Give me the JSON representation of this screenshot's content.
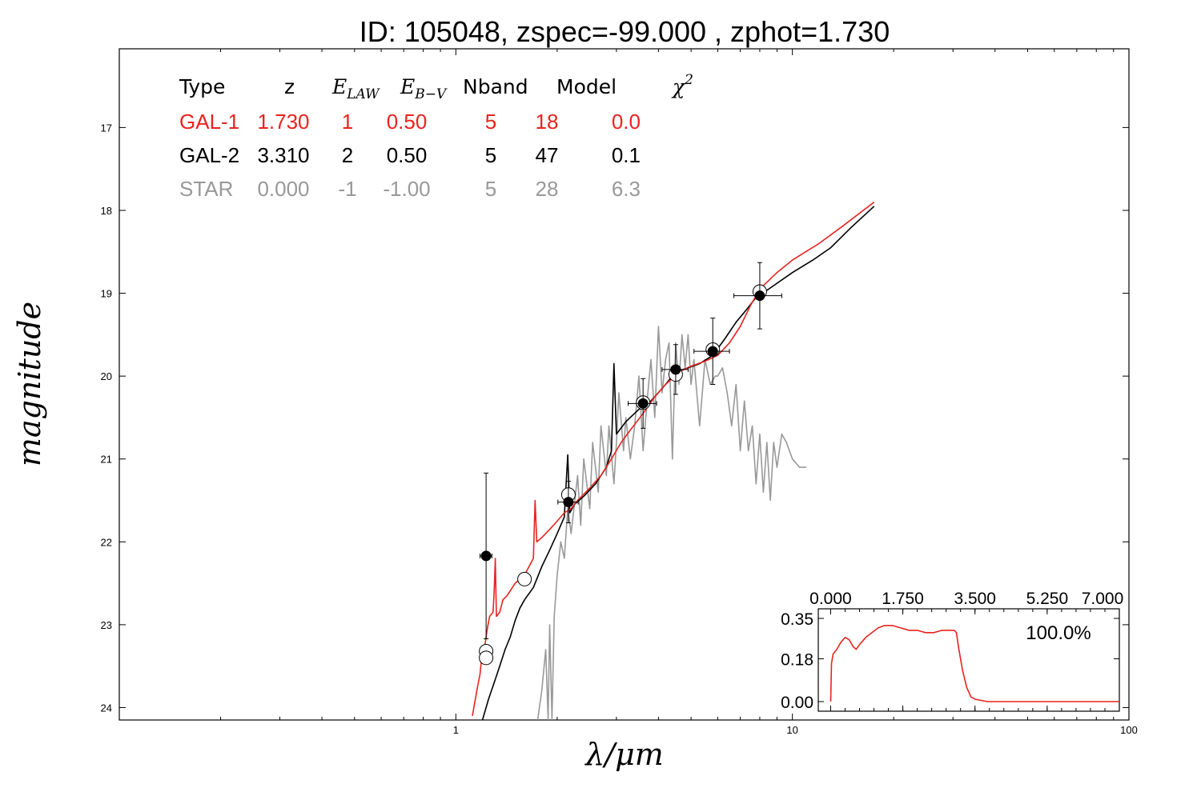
{
  "chart_data": [
    {
      "type": "line",
      "title": "ID:  105048, zspec=-99.000 , zphot=1.730",
      "xlabel": "λ/μm",
      "ylabel": "magnitude",
      "xscale": "log",
      "xlim": [
        0.1,
        100
      ],
      "ylim": [
        24.15,
        16.05
      ],
      "y_inverted": true,
      "x_ticks": [
        1,
        10,
        100
      ],
      "x_tick_labels": [
        "1",
        "10",
        "100"
      ],
      "y_ticks": [
        17,
        18,
        19,
        20,
        21,
        22,
        23,
        24
      ],
      "y_tick_labels": [
        "17",
        "18",
        "19",
        "20",
        "21",
        "22",
        "23",
        "24"
      ],
      "legend_table": {
        "headers": {
          "type": "Type",
          "z": "z",
          "elaw": "E",
          "elaw_sub": "LAW",
          "ebv": "E",
          "ebv_sub": "B−V",
          "nband": "Nband",
          "model": "Model",
          "chi2": "χ",
          "chi2_sup": "2"
        },
        "rows": [
          {
            "type": "GAL-1",
            "z": "1.730",
            "elaw": "1",
            "ebv": "0.50",
            "nband": "5",
            "model": "18",
            "chi2": "0.0",
            "color": "#e8231f"
          },
          {
            "type": "GAL-2",
            "z": "3.310",
            "elaw": "2",
            "ebv": "0.50",
            "nband": "5",
            "model": "47",
            "chi2": "0.1",
            "color": "#000000"
          },
          {
            "type": "STAR",
            "z": "0.000",
            "elaw": "-1",
            "ebv": "-1.00",
            "nband": "5",
            "model": "28",
            "chi2": "6.3",
            "color": "#999999"
          }
        ]
      },
      "series": [
        {
          "color": "#e8231f",
          "points": [
            [
              1.12,
              24.1
            ],
            [
              1.16,
              23.75
            ],
            [
              1.18,
              23.6
            ],
            [
              1.2,
              23.3
            ],
            [
              1.22,
              23.25
            ],
            [
              1.24,
              23.05
            ],
            [
              1.26,
              22.9
            ],
            [
              1.29,
              22.85
            ],
            [
              1.3,
              22.6
            ],
            [
              1.31,
              22.2
            ],
            [
              1.32,
              22.9
            ],
            [
              1.35,
              22.85
            ],
            [
              1.38,
              22.7
            ],
            [
              1.42,
              22.65
            ],
            [
              1.5,
              22.5
            ],
            [
              1.6,
              22.4
            ],
            [
              1.7,
              22.2
            ],
            [
              1.72,
              21.5
            ],
            [
              1.74,
              22.0
            ],
            [
              1.8,
              21.95
            ],
            [
              1.9,
              21.85
            ],
            [
              2.0,
              21.75
            ],
            [
              2.1,
              21.65
            ],
            [
              2.2,
              21.6
            ],
            [
              2.3,
              21.5
            ],
            [
              2.5,
              21.35
            ],
            [
              2.7,
              21.2
            ],
            [
              2.9,
              21.0
            ],
            [
              3.1,
              20.8
            ],
            [
              3.3,
              20.65
            ],
            [
              3.6,
              20.45
            ],
            [
              3.9,
              20.25
            ],
            [
              4.2,
              20.1
            ],
            [
              4.6,
              19.95
            ],
            [
              5.0,
              19.88
            ],
            [
              5.5,
              19.82
            ],
            [
              6.0,
              19.75
            ],
            [
              6.5,
              19.6
            ],
            [
              7.0,
              19.4
            ],
            [
              7.5,
              19.15
            ],
            [
              8.0,
              18.95
            ],
            [
              9.0,
              18.75
            ],
            [
              10.0,
              18.6
            ],
            [
              12.0,
              18.4
            ],
            [
              14.0,
              18.2
            ],
            [
              17.5,
              17.9
            ]
          ]
        },
        {
          "color": "#000000",
          "points": [
            [
              1.2,
              24.15
            ],
            [
              1.25,
              23.9
            ],
            [
              1.3,
              23.7
            ],
            [
              1.35,
              23.5
            ],
            [
              1.4,
              23.3
            ],
            [
              1.45,
              23.15
            ],
            [
              1.5,
              22.95
            ],
            [
              1.55,
              22.8
            ],
            [
              1.6,
              22.7
            ],
            [
              1.7,
              22.55
            ],
            [
              1.8,
              22.3
            ],
            [
              1.9,
              22.1
            ],
            [
              2.0,
              21.9
            ],
            [
              2.1,
              21.7
            ],
            [
              2.15,
              20.95
            ],
            [
              2.18,
              21.65
            ],
            [
              2.25,
              21.55
            ],
            [
              2.4,
              21.45
            ],
            [
              2.6,
              21.3
            ],
            [
              2.8,
              21.1
            ],
            [
              2.9,
              20.9
            ],
            [
              2.95,
              19.85
            ],
            [
              3.0,
              20.7
            ],
            [
              3.2,
              20.55
            ],
            [
              3.5,
              20.4
            ],
            [
              3.8,
              20.3
            ],
            [
              4.1,
              20.15
            ],
            [
              4.5,
              19.95
            ],
            [
              4.9,
              19.9
            ],
            [
              5.3,
              19.85
            ],
            [
              5.8,
              19.75
            ],
            [
              6.3,
              19.55
            ],
            [
              6.8,
              19.35
            ],
            [
              7.3,
              19.2
            ],
            [
              7.8,
              19.05
            ],
            [
              8.5,
              18.95
            ],
            [
              10.0,
              18.75
            ],
            [
              11.5,
              18.6
            ],
            [
              13.0,
              18.45
            ],
            [
              15.0,
              18.2
            ],
            [
              17.5,
              17.95
            ]
          ]
        },
        {
          "color": "#999999",
          "points": [
            [
              1.75,
              24.15
            ],
            [
              1.8,
              23.8
            ],
            [
              1.85,
              23.3
            ],
            [
              1.88,
              24.15
            ],
            [
              1.9,
              23.0
            ],
            [
              1.93,
              24.15
            ],
            [
              1.96,
              22.9
            ],
            [
              2.0,
              22.4
            ],
            [
              2.05,
              22.0
            ],
            [
              2.1,
              22.2
            ],
            [
              2.15,
              21.6
            ],
            [
              2.2,
              21.9
            ],
            [
              2.3,
              21.2
            ],
            [
              2.35,
              21.8
            ],
            [
              2.4,
              21.0
            ],
            [
              2.5,
              21.6
            ],
            [
              2.55,
              20.8
            ],
            [
              2.65,
              21.4
            ],
            [
              2.7,
              20.6
            ],
            [
              2.8,
              21.2
            ],
            [
              2.85,
              20.6
            ],
            [
              2.95,
              21.3
            ],
            [
              3.0,
              20.8
            ],
            [
              3.05,
              20.2
            ],
            [
              3.15,
              20.9
            ],
            [
              3.2,
              20.5
            ],
            [
              3.3,
              21.0
            ],
            [
              3.4,
              20.6
            ],
            [
              3.5,
              20.0
            ],
            [
              3.6,
              20.9
            ],
            [
              3.7,
              20.3
            ],
            [
              3.8,
              19.8
            ],
            [
              3.9,
              20.5
            ],
            [
              4.0,
              19.4
            ],
            [
              4.1,
              20.2
            ],
            [
              4.2,
              19.8
            ],
            [
              4.3,
              19.6
            ],
            [
              4.4,
              21.0
            ],
            [
              4.5,
              19.6
            ],
            [
              4.6,
              20.1
            ],
            [
              4.7,
              19.5
            ],
            [
              4.8,
              19.9
            ],
            [
              4.9,
              19.5
            ],
            [
              5.0,
              20.1
            ],
            [
              5.1,
              19.8
            ],
            [
              5.3,
              20.6
            ],
            [
              5.5,
              19.8
            ],
            [
              5.7,
              20.1
            ],
            [
              5.9,
              20.0
            ],
            [
              6.0,
              20.0
            ],
            [
              6.2,
              19.9
            ],
            [
              6.4,
              20.2
            ],
            [
              6.6,
              20.6
            ],
            [
              6.8,
              20.1
            ],
            [
              7.0,
              20.9
            ],
            [
              7.2,
              20.3
            ],
            [
              7.4,
              20.9
            ],
            [
              7.6,
              20.6
            ],
            [
              7.8,
              21.3
            ],
            [
              8.0,
              20.7
            ],
            [
              8.2,
              21.4
            ],
            [
              8.4,
              20.8
            ],
            [
              8.6,
              21.5
            ],
            [
              8.8,
              20.8
            ],
            [
              9.0,
              21.1
            ],
            [
              9.3,
              20.7
            ],
            [
              9.6,
              20.8
            ],
            [
              10.0,
              21.0
            ],
            [
              10.5,
              21.1
            ],
            [
              11.0,
              21.1
            ]
          ]
        }
      ],
      "observed_points": [
        {
          "x": 1.23,
          "y": 22.17,
          "yerr": 1.0,
          "xerr_lo": 0.05,
          "xerr_hi": 0.05
        },
        {
          "x": 2.16,
          "y": 21.52,
          "yerr": 0.25,
          "xerr_lo": 0.15,
          "xerr_hi": 0.15
        },
        {
          "x": 3.6,
          "y": 20.33,
          "yerr": 0.3,
          "xerr_lo": 0.35,
          "xerr_hi": 0.35
        },
        {
          "x": 4.5,
          "y": 19.92,
          "yerr": 0.3,
          "xerr_lo": 0.4,
          "xerr_hi": 0.4
        },
        {
          "x": 5.8,
          "y": 19.7,
          "yerr": 0.4,
          "xerr_lo": 0.7,
          "xerr_hi": 0.7
        },
        {
          "x": 8.0,
          "y": 19.03,
          "yerr": 0.4,
          "xerr_lo": 1.3,
          "xerr_hi": 1.3
        }
      ],
      "model_points": [
        {
          "x": 1.23,
          "y": 23.32
        },
        {
          "x": 1.23,
          "y": 23.4
        },
        {
          "x": 1.6,
          "y": 22.45
        },
        {
          "x": 2.16,
          "y": 21.43
        },
        {
          "x": 3.6,
          "y": 20.32
        },
        {
          "x": 4.5,
          "y": 19.98
        },
        {
          "x": 5.8,
          "y": 19.68
        },
        {
          "x": 8.0,
          "y": 18.98
        }
      ]
    },
    {
      "type": "line",
      "label": "100.0%",
      "xlim": [
        -0.3,
        7.0
      ],
      "ylim": [
        0.0,
        0.35
      ],
      "x_ticks": [
        0.0,
        1.75,
        3.5,
        5.25,
        7.0
      ],
      "x_tick_labels": [
        "0.000",
        "1.750",
        "3.500",
        "5.250",
        "7.000"
      ],
      "y_ticks": [
        0.0,
        0.18,
        0.35
      ],
      "y_tick_labels": [
        "0.00",
        "0.18",
        "0.35"
      ],
      "series": [
        {
          "color": "#e8231f",
          "points": [
            [
              0.0,
              0.0
            ],
            [
              0.02,
              0.16
            ],
            [
              0.06,
              0.2
            ],
            [
              0.15,
              0.22
            ],
            [
              0.25,
              0.25
            ],
            [
              0.35,
              0.27
            ],
            [
              0.45,
              0.26
            ],
            [
              0.55,
              0.23
            ],
            [
              0.62,
              0.22
            ],
            [
              0.7,
              0.24
            ],
            [
              0.85,
              0.27
            ],
            [
              1.0,
              0.29
            ],
            [
              1.15,
              0.31
            ],
            [
              1.3,
              0.32
            ],
            [
              1.5,
              0.32
            ],
            [
              1.7,
              0.31
            ],
            [
              1.9,
              0.3
            ],
            [
              2.1,
              0.3
            ],
            [
              2.3,
              0.29
            ],
            [
              2.5,
              0.29
            ],
            [
              2.7,
              0.3
            ],
            [
              2.85,
              0.3
            ],
            [
              3.0,
              0.3
            ],
            [
              3.05,
              0.29
            ],
            [
              3.1,
              0.23
            ],
            [
              3.2,
              0.13
            ],
            [
              3.3,
              0.06
            ],
            [
              3.4,
              0.02
            ],
            [
              3.5,
              0.01
            ],
            [
              3.8,
              0.0
            ],
            [
              5.0,
              0.0
            ],
            [
              7.0,
              0.0
            ]
          ]
        }
      ]
    }
  ]
}
